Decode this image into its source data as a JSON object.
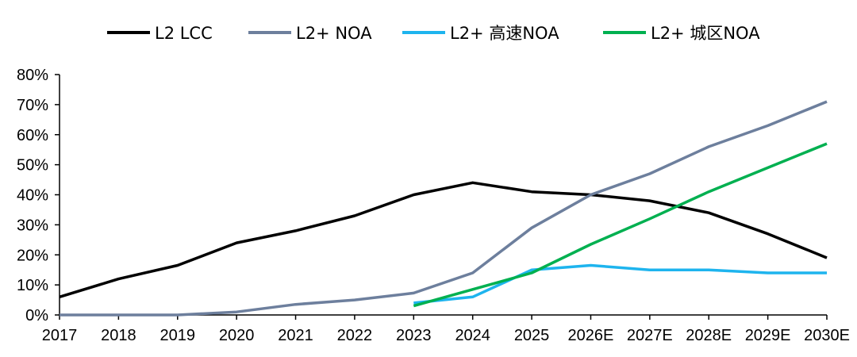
{
  "chart_data": {
    "type": "line",
    "title": "",
    "xlabel": "",
    "ylabel": "",
    "categories": [
      "2017",
      "2018",
      "2019",
      "2020",
      "2021",
      "2022",
      "2023",
      "2024",
      "2025",
      "2026E",
      "2027E",
      "2028E",
      "2029E",
      "2030E"
    ],
    "ylim": [
      0,
      80
    ],
    "yticks": [
      "0%",
      "10%",
      "20%",
      "30%",
      "40%",
      "50%",
      "60%",
      "70%",
      "80%"
    ],
    "legend_position": "top",
    "grid": false,
    "series": [
      {
        "name": "L2 LCC",
        "color": "#000000",
        "values": [
          6,
          12,
          16.5,
          24,
          28,
          33,
          40,
          44,
          41,
          40,
          38,
          34,
          27,
          19
        ]
      },
      {
        "name": "L2+ NOA",
        "color": "#6d7f9d",
        "values": [
          0,
          0,
          0,
          1,
          3.5,
          5,
          7.3,
          14,
          29,
          40,
          47,
          56,
          63,
          71
        ]
      },
      {
        "name": "L2+ 高速NOA",
        "color": "#1eb4ee",
        "values": [
          null,
          null,
          null,
          null,
          null,
          null,
          4,
          6,
          15,
          16.5,
          15,
          15,
          14,
          14
        ]
      },
      {
        "name": "L2+ 城区NOA",
        "color": "#00b050",
        "values": [
          null,
          null,
          null,
          null,
          null,
          null,
          3,
          8.5,
          14,
          23.5,
          32,
          41,
          49,
          57
        ]
      }
    ]
  }
}
